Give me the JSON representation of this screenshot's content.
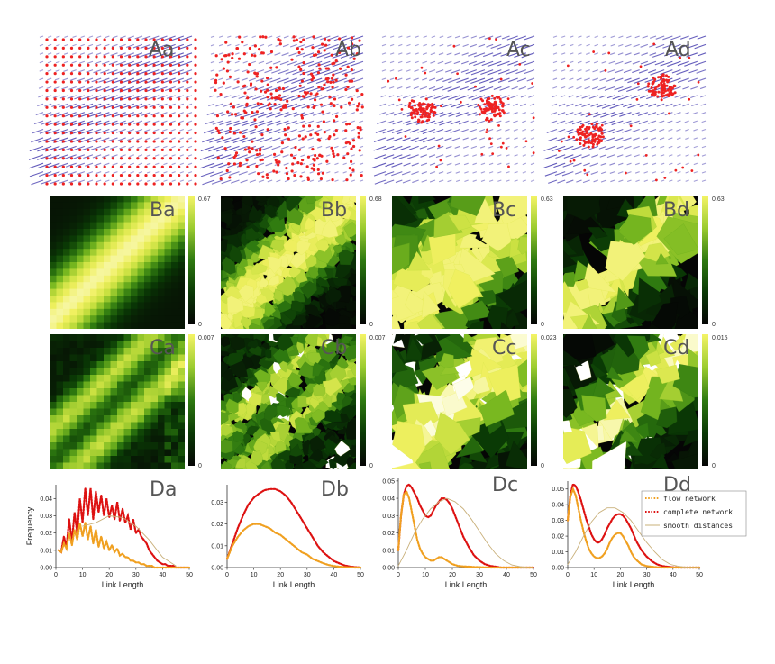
{
  "figure": {
    "row_a": {
      "panels": [
        {
          "label": "Aa",
          "nodes": "lattice"
        },
        {
          "label": "Ab",
          "nodes": "random"
        },
        {
          "label": "Ac",
          "nodes": "two clusters"
        },
        {
          "label": "Ad",
          "nodes": "two clusters (diagonal)"
        }
      ],
      "colors": {
        "arrow": "#5a52b8",
        "node": "#ee2222"
      }
    },
    "row_b": {
      "panels": [
        {
          "label": "Ba",
          "cb_max": "0.67",
          "cb_min": "0"
        },
        {
          "label": "Bb",
          "cb_max": "0.68",
          "cb_min": "0"
        },
        {
          "label": "Bc",
          "cb_max": "0.63",
          "cb_min": "0"
        },
        {
          "label": "Bd",
          "cb_max": "0.63",
          "cb_min": "0"
        }
      ]
    },
    "row_c": {
      "panels": [
        {
          "label": "Ca",
          "cb_max": "0.007",
          "cb_min": "0"
        },
        {
          "label": "Cb",
          "cb_max": "0.007",
          "cb_min": "0"
        },
        {
          "label": "Cc",
          "cb_max": "0.023",
          "cb_min": "0"
        },
        {
          "label": "Cd",
          "cb_max": "0.015",
          "cb_min": "0"
        }
      ]
    },
    "colormap": [
      "#050505",
      "#0a3a05",
      "#2f7a10",
      "#78b820",
      "#c8e040",
      "#f0f060",
      "#ffffff"
    ]
  },
  "chart_data": [
    {
      "type": "line",
      "label": "Da",
      "xlabel": "Link Length",
      "ylabel": "Frequency",
      "xlim": [
        0,
        50
      ],
      "ylim": [
        0,
        0.048
      ],
      "xticks": [
        "0",
        "10",
        "20",
        "30",
        "40",
        "50"
      ],
      "yticks": [
        "0.00",
        "0.01",
        "0.02",
        "0.03",
        "0.04"
      ],
      "series": [
        {
          "name": "complete network",
          "color": "#dd1111",
          "x": [
            1,
            2,
            3,
            4,
            5,
            6,
            7,
            8,
            9,
            10,
            11,
            12,
            13,
            14,
            15,
            16,
            17,
            18,
            19,
            20,
            21,
            22,
            23,
            24,
            25,
            26,
            27,
            28,
            29,
            30,
            31,
            32,
            33,
            34,
            35,
            36,
            37,
            38,
            39,
            40,
            41,
            42,
            43,
            44,
            45,
            46,
            47,
            48,
            49,
            50
          ],
          "values": [
            0.01,
            0.009,
            0.018,
            0.012,
            0.028,
            0.015,
            0.032,
            0.02,
            0.04,
            0.026,
            0.046,
            0.03,
            0.046,
            0.028,
            0.044,
            0.032,
            0.042,
            0.03,
            0.04,
            0.029,
            0.036,
            0.028,
            0.038,
            0.027,
            0.034,
            0.026,
            0.03,
            0.022,
            0.028,
            0.02,
            0.022,
            0.018,
            0.016,
            0.014,
            0.01,
            0.008,
            0.006,
            0.004,
            0.003,
            0.002,
            0.002,
            0.001,
            0.001,
            0.001,
            0.0,
            0.0,
            0.0,
            0.0,
            0.0,
            0.0
          ]
        },
        {
          "name": "flow network",
          "color": "#f0a020",
          "x": [
            1,
            2,
            3,
            4,
            5,
            6,
            7,
            8,
            9,
            10,
            11,
            12,
            13,
            14,
            15,
            16,
            17,
            18,
            19,
            20,
            21,
            22,
            23,
            24,
            25,
            26,
            27,
            28,
            29,
            30,
            31,
            32,
            33,
            34,
            35,
            36,
            37,
            38,
            39,
            40,
            41,
            42,
            43,
            44,
            45,
            46,
            47,
            48,
            49,
            50
          ],
          "values": [
            0.01,
            0.009,
            0.014,
            0.011,
            0.02,
            0.013,
            0.022,
            0.016,
            0.026,
            0.018,
            0.026,
            0.016,
            0.024,
            0.014,
            0.022,
            0.012,
            0.018,
            0.011,
            0.015,
            0.01,
            0.013,
            0.009,
            0.011,
            0.007,
            0.008,
            0.006,
            0.006,
            0.004,
            0.004,
            0.003,
            0.003,
            0.002,
            0.002,
            0.001,
            0.001,
            0.001,
            0.0,
            0.0,
            0.0,
            0.0,
            0.0,
            0.0,
            0.0,
            0.0,
            0.0,
            0.0,
            0.0,
            0.0,
            0.0,
            0.0
          ]
        },
        {
          "name": "smooth distances",
          "color": "#c9b07a",
          "x": [
            10,
            15,
            20,
            25,
            30,
            35,
            40,
            45
          ],
          "values": [
            0.024,
            0.026,
            0.03,
            0.029,
            0.024,
            0.016,
            0.006,
            0.001
          ]
        }
      ]
    },
    {
      "type": "line",
      "label": "Db",
      "xlabel": "Link Length",
      "ylabel": "",
      "xlim": [
        0,
        50
      ],
      "ylim": [
        0,
        0.038
      ],
      "xticks": [
        "0",
        "10",
        "20",
        "30",
        "40",
        "50"
      ],
      "yticks": [
        "0.00",
        "0.01",
        "0.02",
        "0.03"
      ],
      "series": [
        {
          "name": "complete network",
          "color": "#dd1111",
          "x": [
            0,
            2,
            4,
            6,
            8,
            10,
            12,
            14,
            16,
            18,
            20,
            22,
            24,
            26,
            28,
            30,
            32,
            34,
            36,
            38,
            40,
            42,
            44,
            46,
            48,
            50
          ],
          "values": [
            0.004,
            0.011,
            0.018,
            0.024,
            0.029,
            0.032,
            0.034,
            0.0355,
            0.036,
            0.036,
            0.035,
            0.033,
            0.03,
            0.026,
            0.022,
            0.018,
            0.014,
            0.01,
            0.007,
            0.005,
            0.003,
            0.002,
            0.001,
            0.0005,
            0.0002,
            0.0
          ]
        },
        {
          "name": "flow network",
          "color": "#f0a020",
          "x": [
            0,
            2,
            4,
            6,
            8,
            10,
            12,
            14,
            16,
            18,
            20,
            22,
            24,
            26,
            28,
            30,
            32,
            34,
            36,
            38,
            40,
            42,
            44,
            46,
            48,
            50
          ],
          "values": [
            0.004,
            0.01,
            0.014,
            0.017,
            0.019,
            0.02,
            0.02,
            0.019,
            0.018,
            0.016,
            0.015,
            0.013,
            0.011,
            0.009,
            0.007,
            0.006,
            0.004,
            0.003,
            0.002,
            0.0012,
            0.0007,
            0.0004,
            0.0002,
            0.0001,
            0.0,
            0.0
          ]
        }
      ]
    },
    {
      "type": "line",
      "label": "Dc",
      "xlabel": "Link Length",
      "ylabel": "",
      "xlim": [
        0,
        50
      ],
      "ylim": [
        0,
        0.052
      ],
      "xticks": [
        "0",
        "10",
        "20",
        "30",
        "40",
        "50"
      ],
      "yticks": [
        "0.00",
        "0.01",
        "0.02",
        "0.03",
        "0.04",
        "0.05"
      ],
      "series": [
        {
          "name": "complete network",
          "color": "#dd1111",
          "x": [
            0,
            1,
            2,
            3,
            4,
            5,
            6,
            7,
            8,
            9,
            10,
            11,
            12,
            13,
            14,
            15,
            16,
            17,
            18,
            19,
            20,
            21,
            22,
            24,
            26,
            28,
            30,
            32,
            34,
            36,
            38,
            40,
            42,
            44,
            46,
            48,
            50
          ],
          "values": [
            0.01,
            0.03,
            0.042,
            0.047,
            0.048,
            0.046,
            0.043,
            0.04,
            0.036,
            0.033,
            0.03,
            0.029,
            0.03,
            0.033,
            0.036,
            0.038,
            0.04,
            0.04,
            0.039,
            0.037,
            0.034,
            0.03,
            0.026,
            0.018,
            0.012,
            0.007,
            0.004,
            0.002,
            0.001,
            0.0005,
            0.0,
            0.0,
            0.0,
            0.0,
            0.0,
            0.0,
            0.0
          ]
        },
        {
          "name": "flow network",
          "color": "#f0a020",
          "x": [
            0,
            1,
            2,
            3,
            4,
            5,
            6,
            7,
            8,
            9,
            10,
            11,
            12,
            13,
            14,
            15,
            16,
            17,
            18,
            19,
            20,
            21,
            22,
            24,
            26,
            28,
            30,
            32,
            34,
            36,
            38,
            40,
            42,
            44,
            46,
            48,
            50
          ],
          "values": [
            0.01,
            0.03,
            0.042,
            0.044,
            0.04,
            0.032,
            0.024,
            0.016,
            0.011,
            0.008,
            0.006,
            0.005,
            0.004,
            0.004,
            0.005,
            0.006,
            0.006,
            0.005,
            0.004,
            0.003,
            0.002,
            0.0015,
            0.001,
            0.0007,
            0.0005,
            0.0003,
            0.0002,
            0.0001,
            0.0,
            0.0,
            0.0,
            0.0,
            0.0,
            0.0,
            0.0,
            0.0,
            0.0
          ]
        },
        {
          "name": "smooth distances",
          "color": "#c9b07a",
          "x": [
            0,
            3,
            6,
            9,
            12,
            15,
            18,
            21,
            24,
            27,
            30,
            33,
            36,
            39,
            42,
            45,
            48,
            50
          ],
          "values": [
            0.001,
            0.01,
            0.02,
            0.028,
            0.034,
            0.038,
            0.04,
            0.038,
            0.034,
            0.028,
            0.021,
            0.014,
            0.008,
            0.004,
            0.0015,
            0.0005,
            0.0,
            0.0
          ]
        }
      ]
    },
    {
      "type": "line",
      "label": "Dd",
      "xlabel": "Link Length",
      "ylabel": "",
      "xlim": [
        0,
        50
      ],
      "ylim": [
        0,
        0.055
      ],
      "xticks": [
        "0",
        "10",
        "20",
        "30",
        "40",
        "50"
      ],
      "yticks": [
        "0.00",
        "0.01",
        "0.02",
        "0.03",
        "0.04",
        "0.05"
      ],
      "legend": {
        "position": "top-right",
        "entries": [
          "flow network",
          "complete network",
          "smooth distances"
        ]
      },
      "series": [
        {
          "name": "complete network",
          "color": "#dd1111",
          "x": [
            0,
            1,
            2,
            3,
            4,
            5,
            6,
            7,
            8,
            9,
            10,
            11,
            12,
            13,
            14,
            15,
            16,
            17,
            18,
            19,
            20,
            21,
            22,
            23,
            24,
            25,
            26,
            28,
            30,
            32,
            34,
            36,
            38,
            40,
            42,
            44,
            46,
            48,
            50
          ],
          "values": [
            0.03,
            0.046,
            0.053,
            0.052,
            0.048,
            0.043,
            0.037,
            0.031,
            0.026,
            0.021,
            0.018,
            0.016,
            0.016,
            0.018,
            0.021,
            0.025,
            0.028,
            0.031,
            0.033,
            0.034,
            0.034,
            0.033,
            0.031,
            0.028,
            0.025,
            0.021,
            0.017,
            0.011,
            0.007,
            0.004,
            0.002,
            0.001,
            0.0005,
            0.0002,
            0.0,
            0.0,
            0.0,
            0.0,
            0.0
          ]
        },
        {
          "name": "flow network",
          "color": "#f0a020",
          "x": [
            0,
            1,
            2,
            3,
            4,
            5,
            6,
            7,
            8,
            9,
            10,
            11,
            12,
            13,
            14,
            15,
            16,
            17,
            18,
            19,
            20,
            21,
            22,
            23,
            24,
            25,
            26,
            28,
            30,
            32,
            34,
            36,
            38,
            40,
            42,
            44,
            46,
            48,
            50
          ],
          "values": [
            0.03,
            0.045,
            0.05,
            0.046,
            0.038,
            0.03,
            0.023,
            0.017,
            0.012,
            0.009,
            0.007,
            0.006,
            0.006,
            0.007,
            0.009,
            0.012,
            0.016,
            0.019,
            0.021,
            0.022,
            0.022,
            0.02,
            0.017,
            0.014,
            0.01,
            0.007,
            0.005,
            0.002,
            0.001,
            0.0005,
            0.0002,
            0.0,
            0.0,
            0.0,
            0.0,
            0.0,
            0.0,
            0.0,
            0.0
          ]
        },
        {
          "name": "smooth distances",
          "color": "#c9b07a",
          "x": [
            0,
            3,
            6,
            9,
            12,
            15,
            18,
            21,
            24,
            27,
            30,
            33,
            36,
            39,
            42,
            45,
            48,
            50
          ],
          "values": [
            0.002,
            0.01,
            0.02,
            0.029,
            0.035,
            0.038,
            0.038,
            0.035,
            0.03,
            0.023,
            0.016,
            0.01,
            0.005,
            0.002,
            0.0008,
            0.0002,
            0.0,
            0.0
          ]
        }
      ]
    }
  ]
}
